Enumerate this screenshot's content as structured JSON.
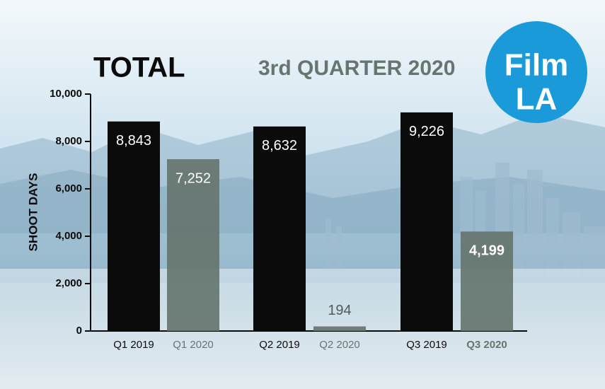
{
  "chart_data": {
    "type": "bar",
    "title": "TOTAL",
    "subtitle": "3rd QUARTER 2020",
    "logo_text": [
      "Film",
      "LA"
    ],
    "y_label": "SHOOT DAYS",
    "categories": [
      "Q1 2019",
      "Q1 2020",
      "Q2 2019",
      "Q2 2020",
      "Q3 2019",
      "Q3 2020"
    ],
    "values": [
      8843,
      7252,
      8632,
      194,
      9226,
      4199
    ],
    "value_labels": [
      "8,843",
      "7,252",
      "8,632",
      "194",
      "9,226",
      "4,199"
    ],
    "colors": [
      "#0b0b0b",
      "#66756f",
      "#0b0b0b",
      "#66756f",
      "#0b0b0b",
      "#66756f"
    ],
    "ylim": [
      0,
      10000
    ],
    "yticks": [
      0,
      {
        "value": 2000,
        "label": "2,000"
      },
      {
        "value": 4000,
        "label": "4,000"
      },
      {
        "value": 6000,
        "label": "6,000"
      },
      {
        "value": 8000,
        "label": "8,000"
      },
      {
        "value": 10000,
        "label": "10,000"
      }
    ]
  }
}
